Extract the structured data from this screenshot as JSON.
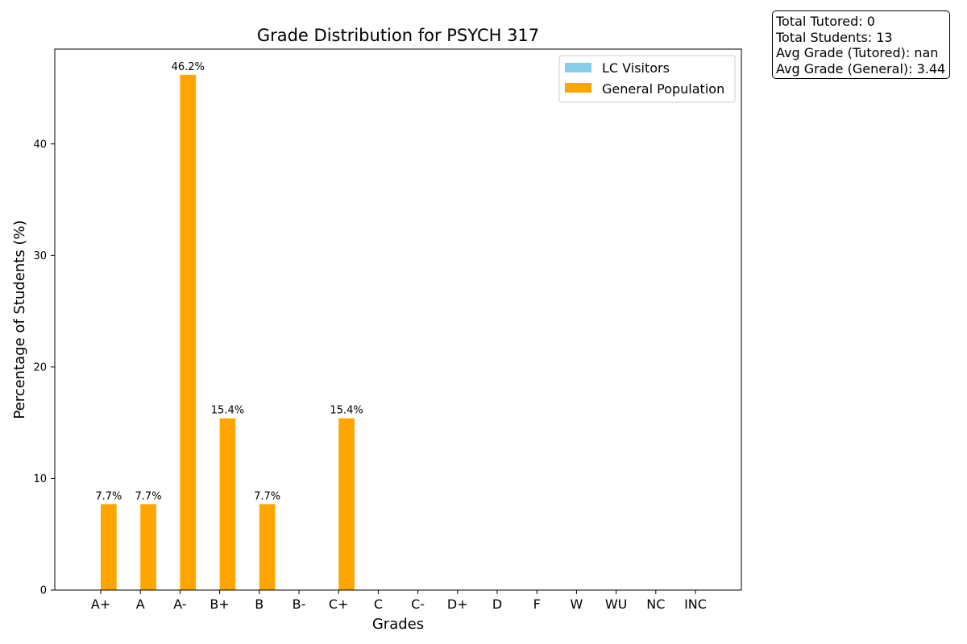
{
  "chart_data": {
    "type": "bar",
    "title": "Grade Distribution for PSYCH 317",
    "xlabel": "Grades",
    "ylabel": "Percentage of Students (%)",
    "categories": [
      "A+",
      "A",
      "A-",
      "B+",
      "B",
      "B-",
      "C+",
      "C",
      "C-",
      "D+",
      "D",
      "F",
      "W",
      "WU",
      "NC",
      "INC"
    ],
    "ylim": [
      0,
      48.5
    ],
    "yticks": [
      0,
      10,
      20,
      30,
      40
    ],
    "grid": false,
    "legend_position": "top-right",
    "series": [
      {
        "name": "LC Visitors",
        "color": "#87CEEB",
        "values": [
          0,
          0,
          0,
          0,
          0,
          0,
          0,
          0,
          0,
          0,
          0,
          0,
          0,
          0,
          0,
          0
        ],
        "labels": [
          "",
          "",
          "",
          "",
          "",
          "",
          "",
          "",
          "",
          "",
          "",
          "",
          "",
          "",
          "",
          ""
        ]
      },
      {
        "name": "General Population",
        "color": "#FFA500",
        "values": [
          7.7,
          7.7,
          46.2,
          15.4,
          7.7,
          0,
          15.4,
          0,
          0,
          0,
          0,
          0,
          0,
          0,
          0,
          0
        ],
        "labels": [
          "7.7%",
          "7.7%",
          "46.2%",
          "15.4%",
          "7.7%",
          "",
          "15.4%",
          "",
          "",
          "",
          "",
          "",
          "",
          "",
          "",
          ""
        ]
      }
    ]
  },
  "stats": {
    "total_tutored": "Total Tutored: 0",
    "total_students": "Total Students: 13",
    "avg_tutored": "Avg Grade (Tutored): nan",
    "avg_general": "Avg Grade (General): 3.44"
  }
}
